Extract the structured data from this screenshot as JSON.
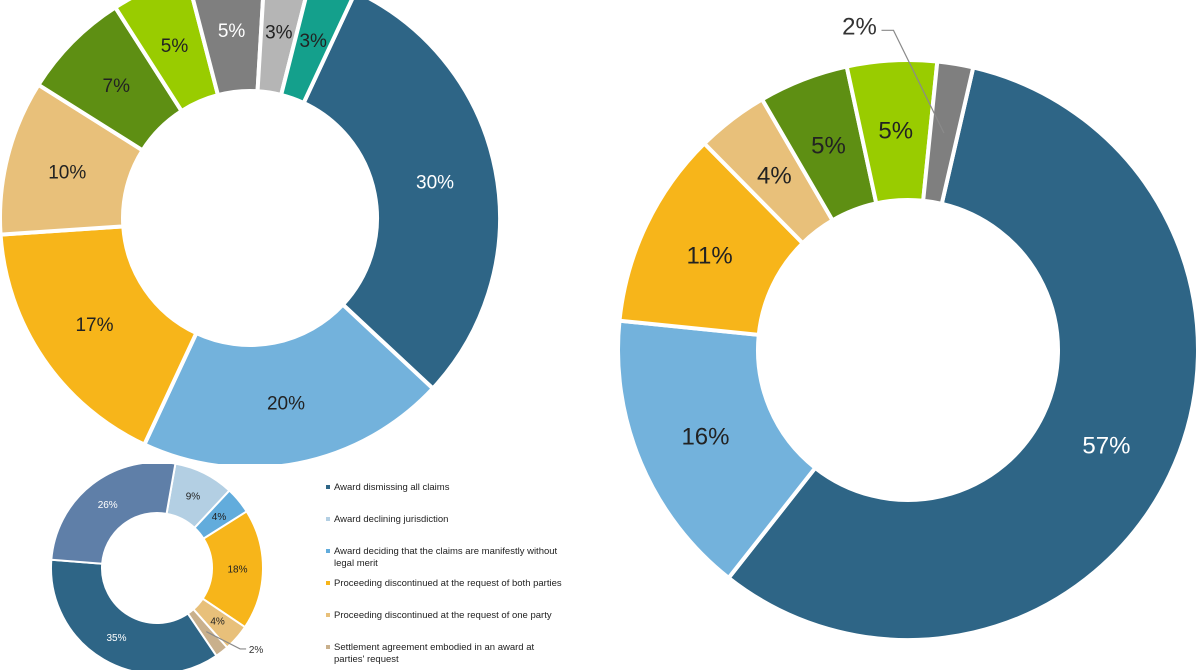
{
  "chart_data": [
    {
      "type": "pie",
      "variant": "donut",
      "values": [
        30,
        20,
        17,
        10,
        7,
        5,
        5,
        3,
        3
      ],
      "labels": [
        "30%",
        "20%",
        "17%",
        "10%",
        "7%",
        "5%",
        "5%",
        "3%",
        "3%"
      ],
      "colors": [
        "#2e6586",
        "#73b2dc",
        "#f7b51a",
        "#e8c07a",
        "#5e8f13",
        "#99cc00",
        "#7f7f7f",
        "#b5b5b5",
        "#14a08c"
      ]
    },
    {
      "type": "pie",
      "variant": "donut",
      "values": [
        57,
        16,
        11,
        4,
        5,
        5,
        2
      ],
      "labels": [
        "57%",
        "16%",
        "11%",
        "4%",
        "5%",
        "5%",
        "2%"
      ],
      "colors": [
        "#2e6586",
        "#73b2dc",
        "#f7b51a",
        "#e8c07a",
        "#5e8f13",
        "#99cc00",
        "#7f7f7f"
      ]
    },
    {
      "type": "pie",
      "variant": "donut",
      "values": [
        9,
        4,
        18,
        4,
        2,
        35,
        26
      ],
      "labels": [
        "9%",
        "4%",
        "18%",
        "4%",
        "2%",
        "35%",
        "26%"
      ],
      "colors": [
        "#b3cfe3",
        "#62acdc",
        "#f7b51a",
        "#e8c07a",
        "#c9b08c",
        "#2e6586",
        "#5f7fa8"
      ],
      "legend": [
        {
          "label": "Award dismissing all claims",
          "color": "#2e6586"
        },
        {
          "label": "Award declining jurisdiction",
          "color": "#b3cfe3"
        },
        {
          "label": "Award deciding that the claims are manifestly without legal merit",
          "color": "#62acdc"
        },
        {
          "label": "Proceeding discontinued at the request of both parties",
          "color": "#f7b51a"
        },
        {
          "label": "Proceeding discontinued at the request of one party",
          "color": "#e8c07a"
        },
        {
          "label": "Settlement agreement embodied in an award at parties' request",
          "color": "#c9b08c"
        }
      ]
    }
  ]
}
